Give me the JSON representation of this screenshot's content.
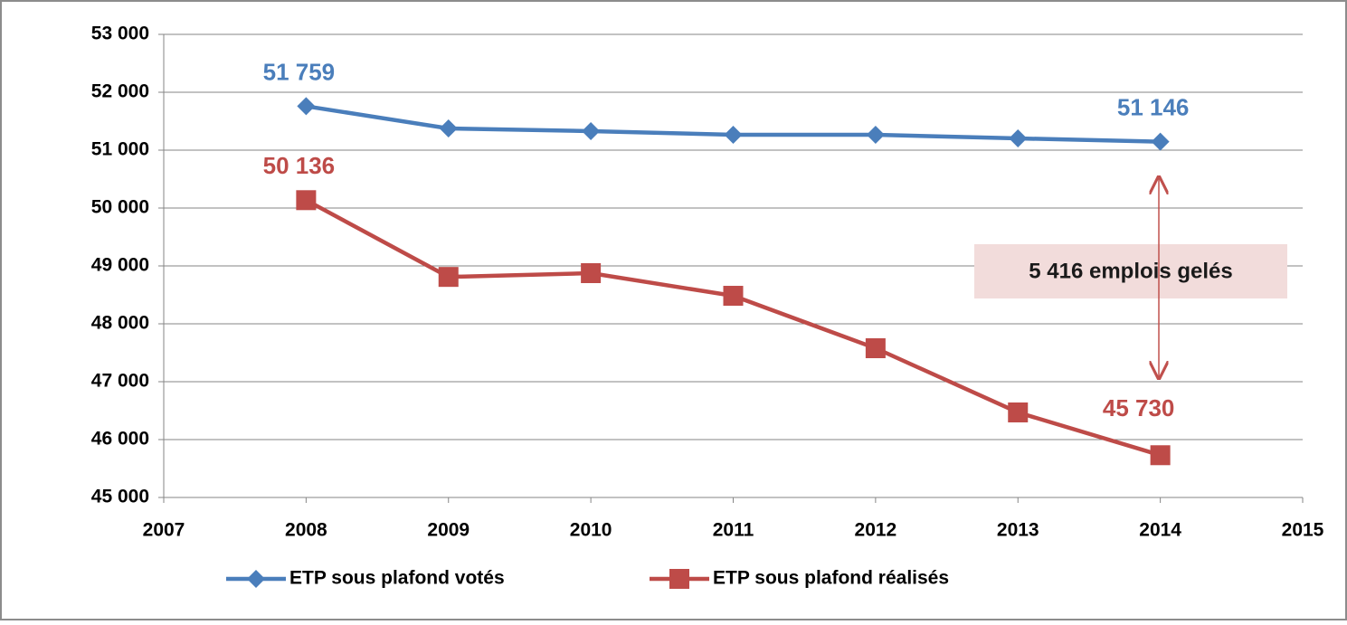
{
  "chart_data": {
    "type": "line",
    "x": [
      2008,
      2009,
      2010,
      2011,
      2012,
      2013,
      2014
    ],
    "series": [
      {
        "name": "ETP sous plafond votés",
        "color": "#4a7ebb",
        "marker": "diamond",
        "values": [
          51759,
          51375,
          51328,
          51266,
          51266,
          51203,
          51146
        ],
        "value_labels": [
          "51 759",
          null,
          null,
          null,
          null,
          null,
          "51 146"
        ]
      },
      {
        "name": "ETP sous plafond réalisés",
        "color": "#be4b48",
        "marker": "square",
        "values": [
          50136,
          48810,
          48875,
          48484,
          47578,
          46469,
          45730
        ],
        "value_labels": [
          "50 136",
          null,
          null,
          null,
          null,
          null,
          "45 730"
        ]
      }
    ],
    "xlim": [
      2007,
      2015
    ],
    "xticks": [
      2007,
      2008,
      2009,
      2010,
      2011,
      2012,
      2013,
      2014,
      2015
    ],
    "ylim": [
      45000,
      53000
    ],
    "yticks": [
      {
        "value": 45000,
        "label": "45 000"
      },
      {
        "value": 46000,
        "label": "46 000"
      },
      {
        "value": 47000,
        "label": "47 000"
      },
      {
        "value": 48000,
        "label": "48 000"
      },
      {
        "value": 49000,
        "label": "49 000"
      },
      {
        "value": 50000,
        "label": "50 000"
      },
      {
        "value": 51000,
        "label": "51 000"
      },
      {
        "value": 52000,
        "label": "52 000"
      },
      {
        "value": 53000,
        "label": "53 000"
      }
    ],
    "grid": true,
    "legend": "bottom",
    "annotation": "5 416 emplois gelés"
  }
}
